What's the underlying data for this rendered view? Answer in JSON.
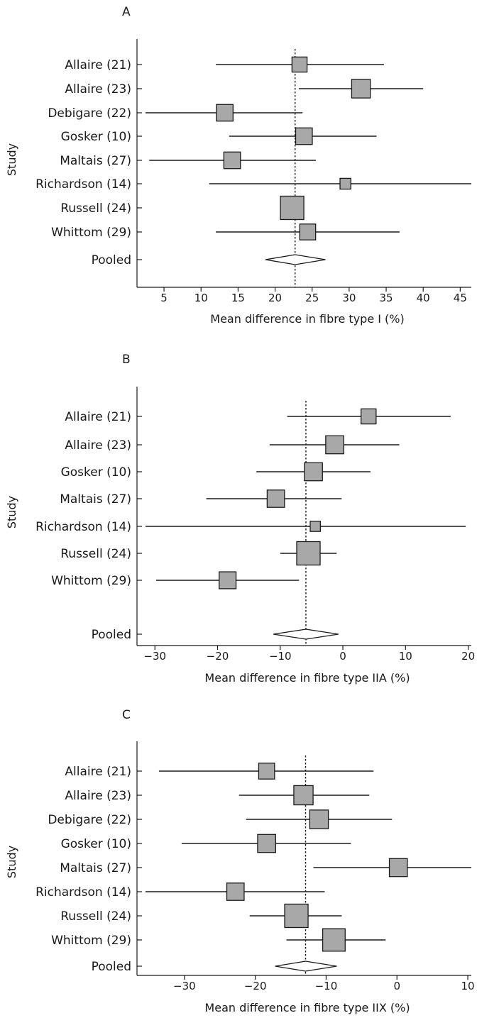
{
  "chart_data": [
    {
      "type": "forest",
      "panel_label": "A",
      "xlabel": "Mean difference in fibre type I (%)",
      "ylabel": "Study",
      "xlim": [
        2.5,
        46.5
      ],
      "xticks": [
        5,
        10,
        15,
        20,
        25,
        30,
        35,
        40,
        45
      ],
      "tick_labels": [
        "5",
        "10",
        "15",
        "20",
        "25",
        "30",
        "35",
        "40",
        "45"
      ],
      "reference": 22.7,
      "studies": [
        {
          "label": "Allaire (21)",
          "mean": 23.3,
          "lower": 12.0,
          "upper": 34.7,
          "weight": 0.3
        },
        {
          "label": "Allaire (23)",
          "mean": 31.6,
          "lower": 23.2,
          "upper": 40.0,
          "weight": 0.55
        },
        {
          "label": "Debigare (22)",
          "mean": 13.2,
          "lower": 2.5,
          "upper": 23.7,
          "weight": 0.4
        },
        {
          "label": "Gosker (10)",
          "mean": 23.9,
          "lower": 13.8,
          "upper": 33.7,
          "weight": 0.4
        },
        {
          "label": "Maltais (27)",
          "mean": 14.2,
          "lower": 3.0,
          "upper": 25.5,
          "weight": 0.4
        },
        {
          "label": "Richardson (14)",
          "mean": 29.5,
          "lower": 11.1,
          "upper": 46.5,
          "weight": 0.1
        },
        {
          "label": "Russell (24)",
          "mean": 22.3,
          "lower": 20.8,
          "upper": 23.8,
          "weight": 1.0
        },
        {
          "label": "Whittom  (29)",
          "mean": 24.4,
          "lower": 12.0,
          "upper": 36.8,
          "weight": 0.35
        }
      ],
      "pooled": {
        "label": "Pooled",
        "mean": 22.7,
        "lower": 18.7,
        "upper": 26.8
      }
    },
    {
      "type": "forest",
      "panel_label": "B",
      "xlabel": "Mean difference in fibre type IIA (%)",
      "ylabel": "Study",
      "xlim": [
        -31.5,
        20.5
      ],
      "xticks": [
        -30,
        -20,
        -10,
        0,
        10,
        20
      ],
      "tick_labels": [
        "−30",
        "−20",
        "−10",
        "0",
        "10",
        "20"
      ],
      "reference": -5.9,
      "studies": [
        {
          "label": "Allaire (21)",
          "mean": 4.1,
          "lower": -8.9,
          "upper": 17.2,
          "weight": 0.3
        },
        {
          "label": "Allaire (23)",
          "mean": -1.3,
          "lower": -11.7,
          "upper": 9.0,
          "weight": 0.5
        },
        {
          "label": "Gosker (10)",
          "mean": -4.7,
          "lower": -13.8,
          "upper": 4.4,
          "weight": 0.5
        },
        {
          "label": "Maltais (27)",
          "mean": -10.7,
          "lower": -21.8,
          "upper": -0.2,
          "weight": 0.45
        },
        {
          "label": "Richardson (14)",
          "mean": -4.4,
          "lower": -31.5,
          "upper": 19.6,
          "weight": 0.08
        },
        {
          "label": "Russell (24)",
          "mean": -5.5,
          "lower": -10.0,
          "upper": -1.0,
          "weight": 1.0
        },
        {
          "label": "Whittom  (29)",
          "mean": -18.4,
          "lower": -29.8,
          "upper": -7.0,
          "weight": 0.42
        }
      ],
      "pooled": {
        "label": "Pooled",
        "mean": -5.9,
        "lower": -11.1,
        "upper": -0.7
      }
    },
    {
      "type": "forest",
      "panel_label": "C",
      "xlabel": "Mean difference in fibre type IIX (%)",
      "ylabel": "Study",
      "xlim": [
        -35.5,
        10.5
      ],
      "xticks": [
        -30,
        -20,
        -10,
        0,
        10
      ],
      "tick_labels": [
        "−30",
        "−20",
        "−10",
        "0",
        "10"
      ],
      "reference": -12.9,
      "studies": [
        {
          "label": "Allaire (21)",
          "mean": -18.4,
          "lower": -33.6,
          "upper": -3.3,
          "weight": 0.35
        },
        {
          "label": "Allaire (23)",
          "mean": -13.2,
          "lower": -22.3,
          "upper": -3.9,
          "weight": 0.6
        },
        {
          "label": "Debigare (22)",
          "mean": -11.0,
          "lower": -21.3,
          "upper": -0.7,
          "weight": 0.55
        },
        {
          "label": "Gosker (10)",
          "mean": -18.4,
          "lower": -30.4,
          "upper": -6.5,
          "weight": 0.5
        },
        {
          "label": "Maltais (27)",
          "mean": 0.2,
          "lower": -11.8,
          "upper": 10.5,
          "weight": 0.5
        },
        {
          "label": "Richardson (14)",
          "mean": -22.8,
          "lower": -35.5,
          "upper": -10.2,
          "weight": 0.45
        },
        {
          "label": "Russell (24)",
          "mean": -14.2,
          "lower": -20.8,
          "upper": -7.8,
          "weight": 1.0
        },
        {
          "label": "Whittom  (29)",
          "mean": -8.9,
          "lower": -15.6,
          "upper": -1.6,
          "weight": 0.9
        }
      ],
      "pooled": {
        "label": "Pooled",
        "mean": -12.9,
        "lower": -17.2,
        "upper": -8.5
      }
    }
  ],
  "colors": {
    "marker_fill": "#a8a8a8",
    "line": "#1a1a1a",
    "background": "#ffffff"
  }
}
